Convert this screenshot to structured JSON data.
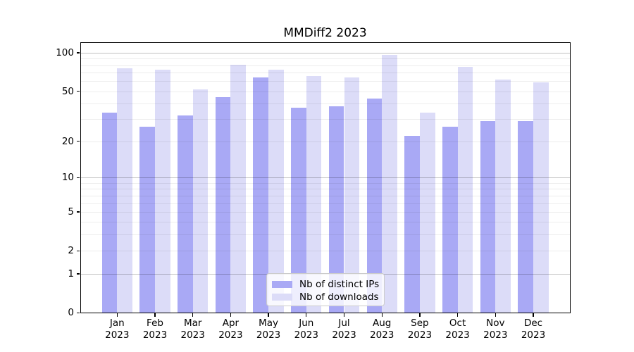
{
  "chart_data": {
    "type": "bar",
    "title": "MMDiff2 2023",
    "categories": [
      "Jan",
      "Feb",
      "Mar",
      "Apr",
      "May",
      "Jun",
      "Jul",
      "Aug",
      "Sep",
      "Oct",
      "Nov",
      "Dec"
    ],
    "category_year": "2023",
    "series": [
      {
        "name": "Nb of distinct IPs",
        "color": "#a9a9f5",
        "values": [
          34,
          26,
          32,
          45,
          64,
          37,
          38,
          44,
          22,
          26,
          29,
          29
        ]
      },
      {
        "name": "Nb of downloads",
        "color": "#dcdcf8",
        "values": [
          76,
          74,
          52,
          81,
          74,
          66,
          64,
          96,
          34,
          78,
          62,
          59
        ]
      }
    ],
    "yaxis": {
      "scale": "log1p",
      "tick_labels": [
        "100",
        "50",
        "20",
        "10",
        "5",
        "2",
        "1",
        "0"
      ],
      "tick_values": [
        100,
        50,
        20,
        10,
        5,
        2,
        1,
        0
      ],
      "ylim": [
        0,
        121
      ]
    },
    "xlabel": "",
    "ylabel": "",
    "grid": true,
    "legend_position": "lower center"
  },
  "colors": {
    "major_grid": "rgba(0,0,0,0.24)",
    "minor_grid": "rgba(0,0,0,0.07)",
    "spine": "#000000",
    "legend_border": "#cccccc"
  }
}
